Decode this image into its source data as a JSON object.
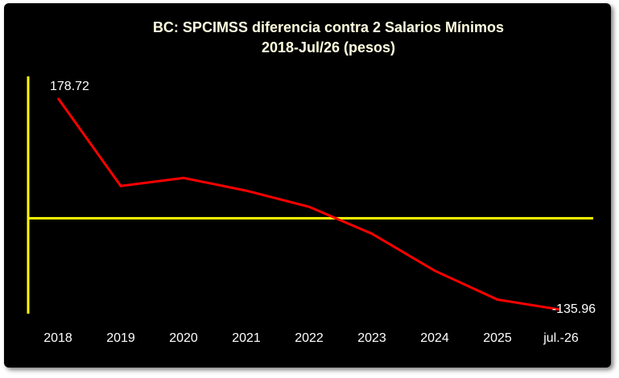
{
  "chart_data": {
    "type": "line",
    "title": "BC: SPCIMSS diferencia contra 2 Salarios Mínimos",
    "subtitle": "2018-Jul/26  (pesos)",
    "categories": [
      "2018",
      "2019",
      "2020",
      "2021",
      "2022",
      "2023",
      "2024",
      "2025",
      "jul.-26"
    ],
    "series": [
      {
        "color": "#ff0000",
        "values": [
          178.72,
          48,
          60,
          41,
          17,
          -23,
          -78,
          -121,
          -135.96
        ]
      }
    ]
  }
}
